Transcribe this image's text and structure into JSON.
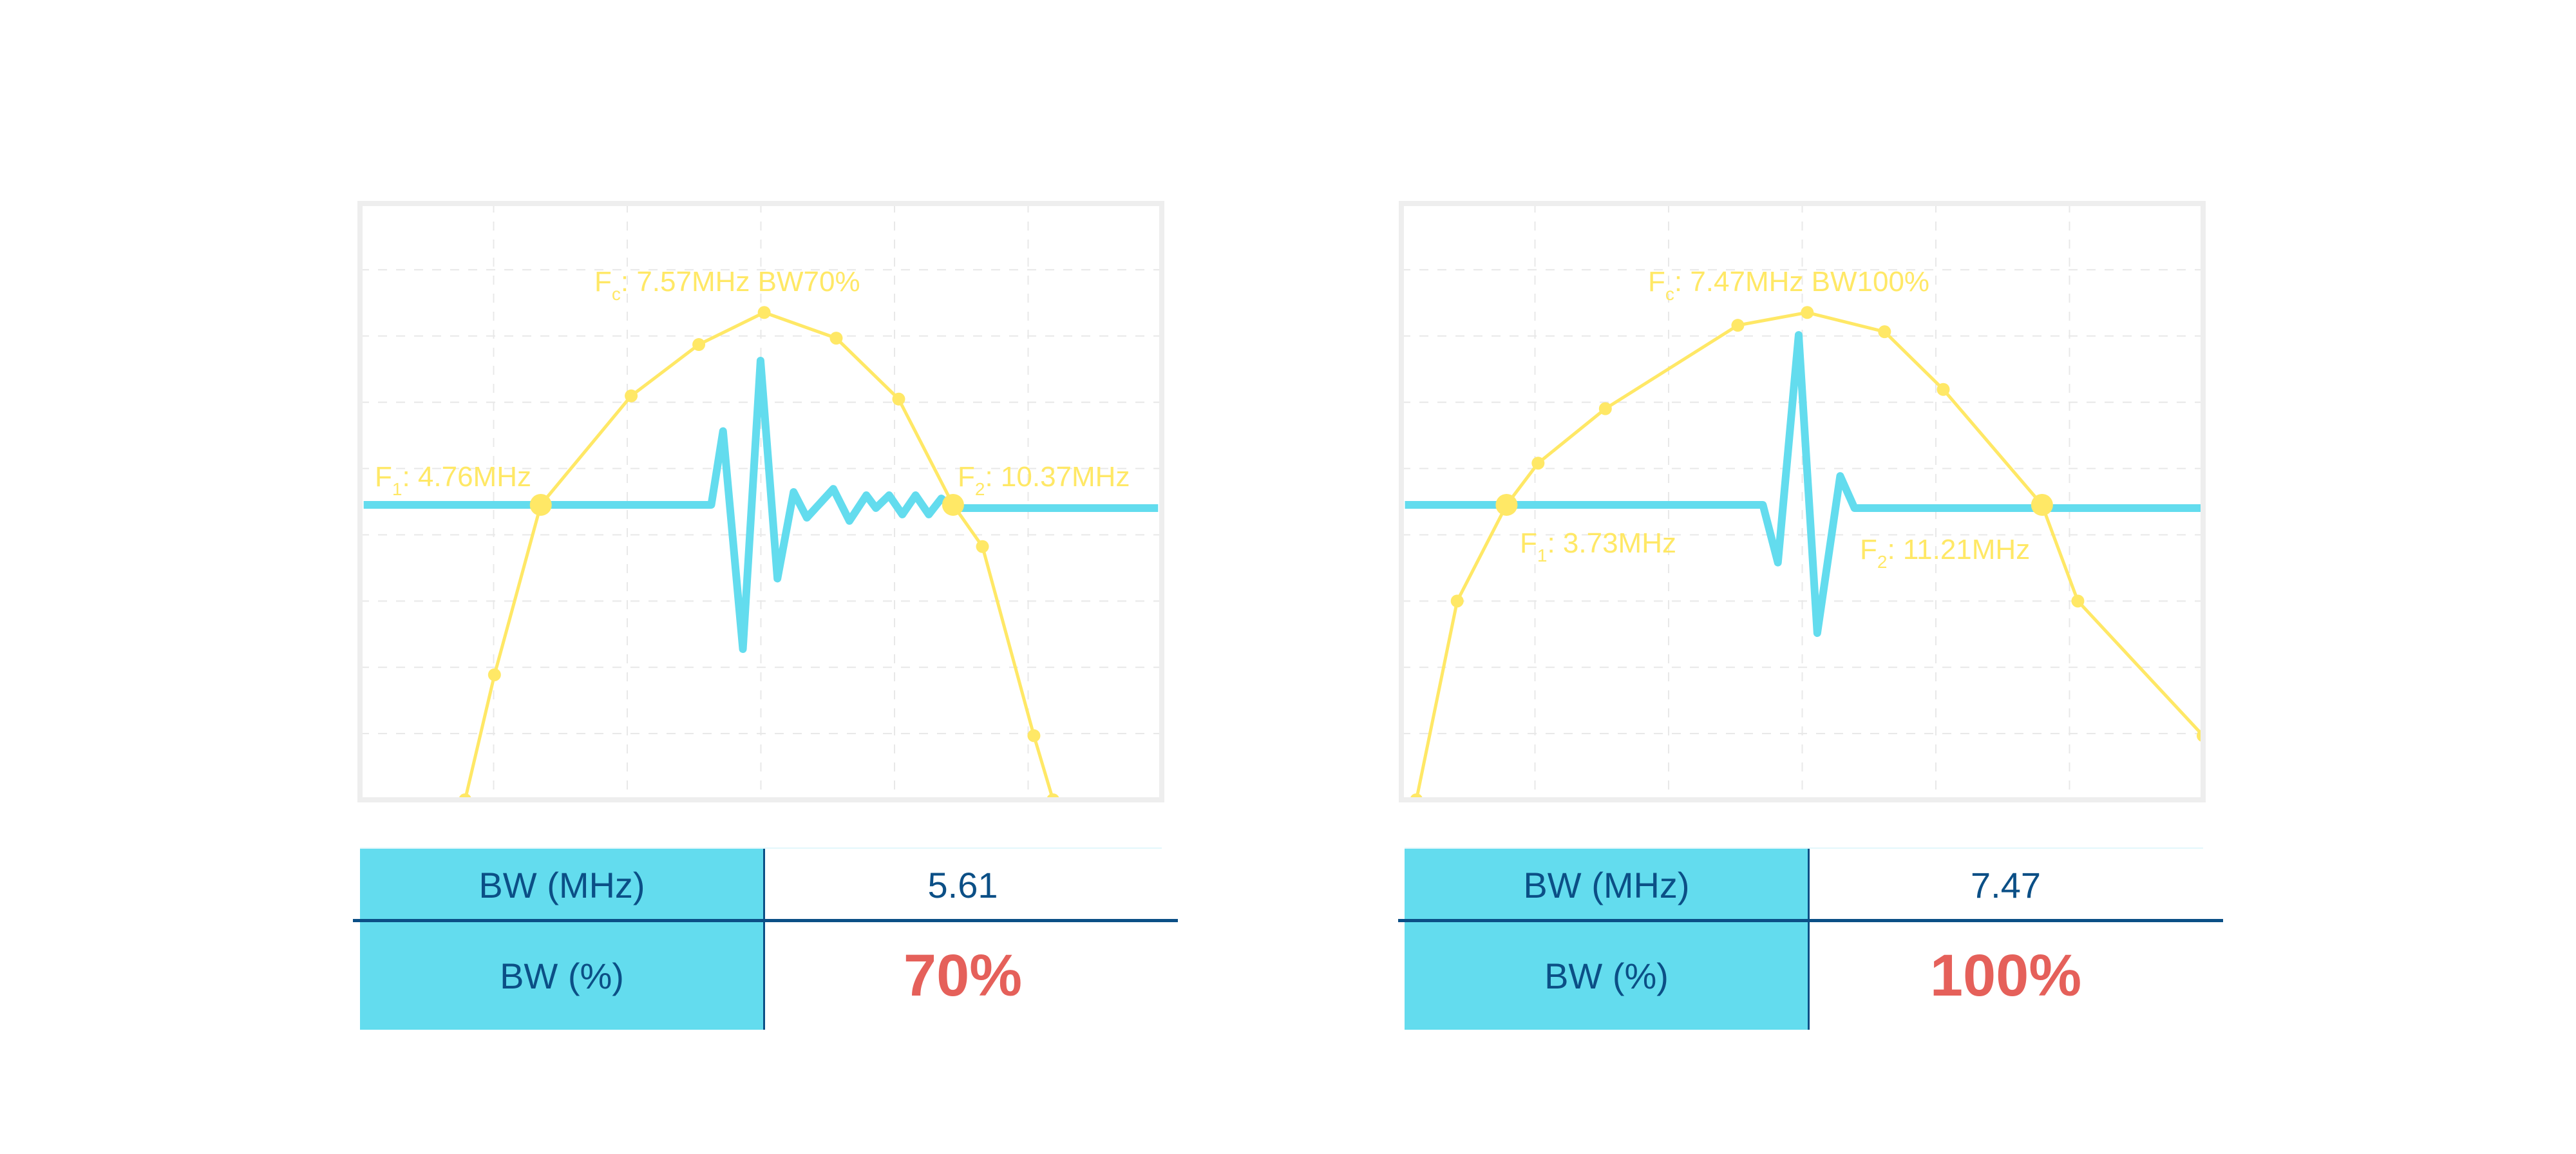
{
  "colors": {
    "spectrum": "#ffe866",
    "waveform": "#63dcee",
    "frame": "#eeeeee",
    "grid": "#e8e8e8",
    "table_label_bg": "#63dcee",
    "table_text": "#0b4f86",
    "percent_text": "#e5605a"
  },
  "chart_data": [
    {
      "type": "line",
      "xlim": [
        2.3,
        13.21
      ],
      "ylim": [
        -15.2,
        3.4
      ],
      "grid": true,
      "spectrum": {
        "x": [
          3.73,
          4.13,
          4.76,
          5.99,
          6.91,
          7.8,
          8.78,
          9.63,
          10.37,
          10.77,
          11.47,
          11.73
        ],
        "y": [
          -15.2,
          -11.3,
          -6,
          -2.6,
          -1.0,
          0,
          -0.8,
          -2.7,
          -6,
          -7.3,
          -13.2,
          -15.2
        ]
      },
      "waveform": {
        "x": [
          2.35,
          7.08,
          7.24,
          7.51,
          7.75,
          7.98,
          8.2,
          8.38,
          8.74,
          8.96,
          9.19,
          9.32,
          9.5,
          9.68,
          9.86,
          10.04,
          10.21,
          10.37,
          13.16
        ],
        "y": [
          -6,
          -6,
          -3.7,
          -10.5,
          -1.5,
          -8.3,
          -5.6,
          -6.4,
          -5.5,
          -6.5,
          -5.7,
          -6.1,
          -5.7,
          -6.3,
          -5.7,
          -6.3,
          -5.8,
          -6.1,
          -6.1
        ]
      },
      "markers": [
        {
          "x": 4.76,
          "y": -6
        },
        {
          "x": 10.37,
          "y": -6
        }
      ],
      "labels": {
        "fc": {
          "main": "F",
          "sub": "c",
          "value": ": 7.57MHz BW70%"
        },
        "f1": {
          "main": "F",
          "sub": "1",
          "value": ": 4.76MHz"
        },
        "f2": {
          "main": "F",
          "sub": "2",
          "value": ": 10.37MHz"
        }
      }
    },
    {
      "type": "line",
      "xlim": [
        2.26,
        13.46
      ],
      "ylim": [
        -15.2,
        3.4
      ],
      "grid": true,
      "spectrum": {
        "x": [
          2.47,
          3.04,
          3.73,
          4.17,
          5.11,
          6.96,
          7.93,
          9.01,
          9.83,
          11.21,
          11.71,
          13.46
        ],
        "y": [
          -15.2,
          -9.0,
          -6,
          -4.7,
          -3.0,
          -0.4,
          0,
          -0.6,
          -2.4,
          -6,
          -9.0,
          -13.2
        ]
      },
      "waveform": {
        "x": [
          2.31,
          7.31,
          7.52,
          7.81,
          8.07,
          8.39,
          8.59,
          13.46
        ],
        "y": [
          -6,
          -6,
          -7.8,
          -0.7,
          -10.0,
          -5.1,
          -6.1,
          -6.1
        ]
      },
      "markers": [
        {
          "x": 3.73,
          "y": -6
        },
        {
          "x": 11.21,
          "y": -6
        }
      ],
      "labels": {
        "fc": {
          "main": "F",
          "sub": "c",
          "value": ": 7.47MHz BW100%"
        },
        "f1": {
          "main": "F",
          "sub": "1",
          "value": ": 3.73MHz"
        },
        "f2": {
          "main": "F",
          "sub": "2",
          "value": ": 11.21MHz"
        }
      }
    }
  ],
  "tables": [
    {
      "bw_mhz_label": "BW (MHz)",
      "bw_mhz_value": "5.61",
      "bw_pct_label": "BW (%)",
      "bw_pct_value": "70%"
    },
    {
      "bw_mhz_label": "BW (MHz)",
      "bw_mhz_value": "7.47",
      "bw_pct_label": "BW (%)",
      "bw_pct_value": "100%"
    }
  ]
}
